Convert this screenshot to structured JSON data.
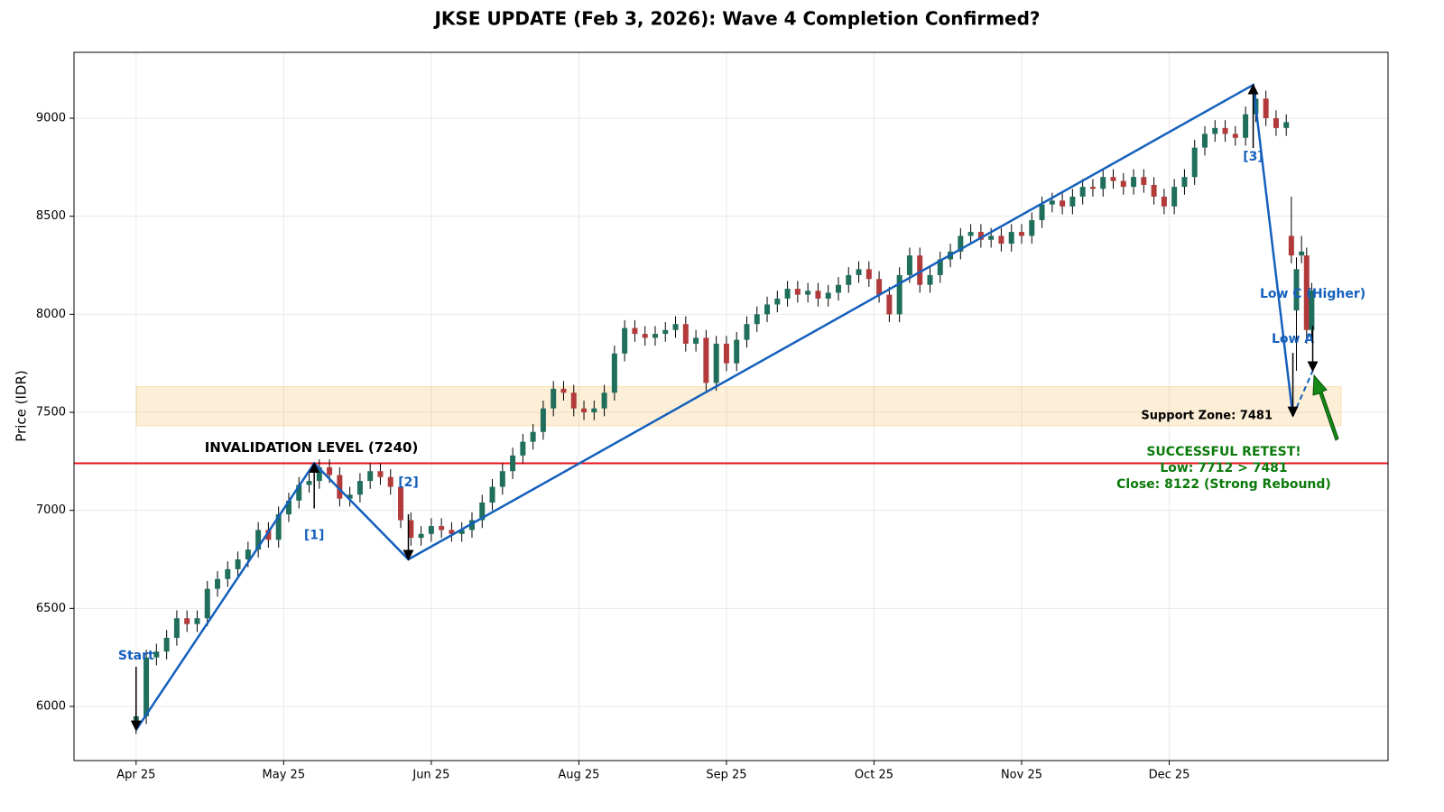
{
  "chart_data": {
    "type": "candlestick",
    "title": "JKSE UPDATE (Feb 3, 2026): Wave 4 Completion Confirmed?",
    "y_label": "Price (IDR)",
    "up_color": "#1f6f5c",
    "down_color": "#b23a3a",
    "xlim": [
      -12.2,
      246
    ],
    "ylim": [
      5724,
      9336
    ],
    "xticks": [
      {
        "value": 0,
        "label": "Apr 25"
      },
      {
        "value": 29,
        "label": "May 25"
      },
      {
        "value": 58,
        "label": "Jun 25"
      },
      {
        "value": 87,
        "label": "Aug 25"
      },
      {
        "value": 116,
        "label": "Sep 25"
      },
      {
        "value": 145,
        "label": "Oct 25"
      },
      {
        "value": 174,
        "label": "Nov 25"
      },
      {
        "value": 203,
        "label": "Dec 25"
      }
    ],
    "yticks": [
      6000,
      6500,
      7000,
      7500,
      8000,
      8500,
      9000
    ],
    "grid": true,
    "x": [
      0,
      2,
      4,
      6,
      8,
      10,
      12,
      14,
      16,
      18,
      20,
      22,
      24,
      26,
      28,
      30,
      32,
      34,
      36,
      38,
      40,
      42,
      44,
      46,
      48,
      50,
      52,
      54,
      56,
      58,
      60,
      62,
      64,
      66,
      68,
      70,
      72,
      74,
      76,
      78,
      80,
      82,
      84,
      86,
      88,
      90,
      92,
      94,
      96,
      98,
      100,
      102,
      104,
      106,
      108,
      110,
      112,
      114,
      116,
      118,
      120,
      122,
      124,
      126,
      128,
      130,
      132,
      134,
      136,
      138,
      140,
      142,
      144,
      146,
      148,
      150,
      152,
      154,
      156,
      158,
      160,
      162,
      164,
      166,
      168,
      170,
      172,
      174,
      176,
      178,
      180,
      182,
      184,
      186,
      188,
      190,
      192,
      194,
      196,
      198,
      200,
      202,
      204,
      206,
      208,
      210,
      212,
      214,
      216,
      218,
      220,
      222,
      224,
      226,
      227,
      228,
      229,
      230,
      231
    ],
    "open": [
      5900,
      5950,
      6250,
      6280,
      6350,
      6450,
      6420,
      6450,
      6600,
      6650,
      6700,
      6750,
      6800,
      6900,
      6850,
      6980,
      7050,
      7130,
      7150,
      7220,
      7180,
      7060,
      7080,
      7150,
      7200,
      7170,
      7120,
      6950,
      6860,
      6880,
      6920,
      6900,
      6880,
      6900,
      6950,
      7040,
      7120,
      7200,
      7280,
      7350,
      7400,
      7520,
      7620,
      7600,
      7520,
      7500,
      7520,
      7600,
      7800,
      7930,
      7900,
      7880,
      7900,
      7920,
      7950,
      7850,
      7880,
      7650,
      7850,
      7750,
      7870,
      7950,
      8000,
      8050,
      8080,
      8130,
      8100,
      8120,
      8080,
      8110,
      8150,
      8200,
      8230,
      8180,
      8100,
      8000,
      8200,
      8300,
      8150,
      8200,
      8280,
      8320,
      8400,
      8420,
      8380,
      8400,
      8360,
      8420,
      8400,
      8480,
      8560,
      8580,
      8550,
      8600,
      8650,
      8640,
      8700,
      8680,
      8650,
      8700,
      8660,
      8600,
      8550,
      8650,
      8700,
      8850,
      8920,
      8950,
      8920,
      8900,
      9020,
      9100,
      9000,
      8950,
      8400,
      8020,
      8300,
      8300,
      7920
    ],
    "high": [
      5990,
      6290,
      6320,
      6390,
      6490,
      6490,
      6490,
      6640,
      6690,
      6740,
      6790,
      6840,
      6940,
      6940,
      7020,
      7090,
      7170,
      7190,
      7260,
      7260,
      7220,
      7120,
      7190,
      7240,
      7240,
      7210,
      7160,
      6990,
      6920,
      6960,
      6960,
      6940,
      6940,
      6990,
      7080,
      7160,
      7240,
      7320,
      7390,
      7440,
      7560,
      7660,
      7660,
      7640,
      7560,
      7560,
      7640,
      7840,
      7970,
      7970,
      7940,
      7940,
      7960,
      7990,
      7990,
      7920,
      7920,
      7890,
      7890,
      7910,
      7990,
      8040,
      8090,
      8120,
      8170,
      8170,
      8160,
      8160,
      8150,
      8190,
      8240,
      8270,
      8270,
      8220,
      8140,
      8240,
      8340,
      8340,
      8240,
      8320,
      8360,
      8440,
      8460,
      8460,
      8440,
      8440,
      8460,
      8460,
      8520,
      8600,
      8620,
      8620,
      8640,
      8690,
      8690,
      8740,
      8740,
      8720,
      8740,
      8740,
      8700,
      8640,
      8690,
      8740,
      8890,
      8960,
      8990,
      8990,
      8960,
      9060,
      9140,
      9140,
      9040,
      9020,
      8600,
      8290,
      8400,
      8340,
      8160
    ],
    "low": [
      5860,
      5910,
      6210,
      6240,
      6310,
      6380,
      6380,
      6410,
      6560,
      6610,
      6660,
      6710,
      6760,
      6810,
      6810,
      6940,
      7010,
      7090,
      7110,
      7140,
      7020,
      7020,
      7040,
      7110,
      7130,
      7080,
      6910,
      6820,
      6820,
      6840,
      6860,
      6840,
      6840,
      6860,
      6910,
      7000,
      7080,
      7160,
      7240,
      7310,
      7360,
      7480,
      7560,
      7480,
      7460,
      7460,
      7480,
      7560,
      7760,
      7860,
      7840,
      7840,
      7860,
      7880,
      7810,
      7810,
      7610,
      7610,
      7710,
      7710,
      7830,
      7910,
      7960,
      8010,
      8040,
      8060,
      8060,
      8040,
      8040,
      8070,
      8110,
      8160,
      8140,
      8060,
      7960,
      7960,
      8160,
      8110,
      8110,
      8160,
      8240,
      8280,
      8360,
      8340,
      8340,
      8320,
      8320,
      8360,
      8360,
      8440,
      8520,
      8510,
      8510,
      8560,
      8600,
      8600,
      8640,
      8610,
      8610,
      8620,
      8560,
      8510,
      8510,
      8610,
      8660,
      8810,
      8880,
      8880,
      8860,
      8860,
      8980,
      8960,
      8910,
      8910,
      8260,
      7712,
      8260,
      7850,
      7880
    ],
    "close": [
      5950,
      6250,
      6280,
      6350,
      6450,
      6420,
      6450,
      6600,
      6650,
      6700,
      6750,
      6800,
      6900,
      6850,
      6980,
      7050,
      7130,
      7150,
      7220,
      7180,
      7060,
      7080,
      7150,
      7200,
      7170,
      7120,
      6950,
      6860,
      6880,
      6920,
      6900,
      6880,
      6900,
      6950,
      7040,
      7120,
      7200,
      7280,
      7350,
      7400,
      7520,
      7620,
      7600,
      7520,
      7500,
      7520,
      7600,
      7800,
      7930,
      7900,
      7880,
      7900,
      7920,
      7950,
      7850,
      7880,
      7650,
      7850,
      7750,
      7870,
      7950,
      8000,
      8050,
      8080,
      8130,
      8100,
      8120,
      8080,
      8110,
      8150,
      8200,
      8230,
      8180,
      8100,
      8000,
      8200,
      8300,
      8150,
      8200,
      8280,
      8320,
      8400,
      8420,
      8380,
      8400,
      8360,
      8420,
      8400,
      8480,
      8560,
      8580,
      8550,
      8600,
      8650,
      8640,
      8700,
      8680,
      8650,
      8700,
      8660,
      8600,
      8550,
      8650,
      8700,
      8850,
      8920,
      8950,
      8920,
      8900,
      9020,
      9100,
      9000,
      8950,
      8980,
      8300,
      8230,
      8320,
      7920,
      8122
    ],
    "wave": {
      "x": [
        0,
        35,
        53.5,
        219.5,
        227.3
      ],
      "y": [
        5880,
        7240,
        6750,
        9170,
        7481
      ],
      "color": "#1560bd"
    },
    "wave_projection": {
      "x": [
        227.3,
        231.2
      ],
      "y": [
        7481,
        7712
      ]
    },
    "wave_labels": [
      {
        "text": "Start",
        "x": 0,
        "y": 5880
      },
      {
        "text": "[1]",
        "x": 35,
        "y": 7240
      },
      {
        "text": "[2]",
        "x": 53.5,
        "y": 6750
      },
      {
        "text": "[3]",
        "x": 219.5,
        "y": 9170
      },
      {
        "text": "Low A",
        "x": 227.3,
        "y": 7481
      },
      {
        "text": "Low C (Higher)",
        "x": 231.2,
        "y": 7712
      }
    ],
    "invalidation": {
      "value": 7240,
      "label": "INVALIDATION LEVEL (7240)",
      "color": "#e8121b"
    },
    "support_zone": {
      "range": [
        7431,
        7631
      ],
      "label": "Support Zone: 7481",
      "color": "#f5a623"
    },
    "retest_text": [
      "SUCCESSFUL RETEST!",
      "Low: 7712 > 7481",
      "Close: 8122 (Strong Rebound)"
    ]
  }
}
